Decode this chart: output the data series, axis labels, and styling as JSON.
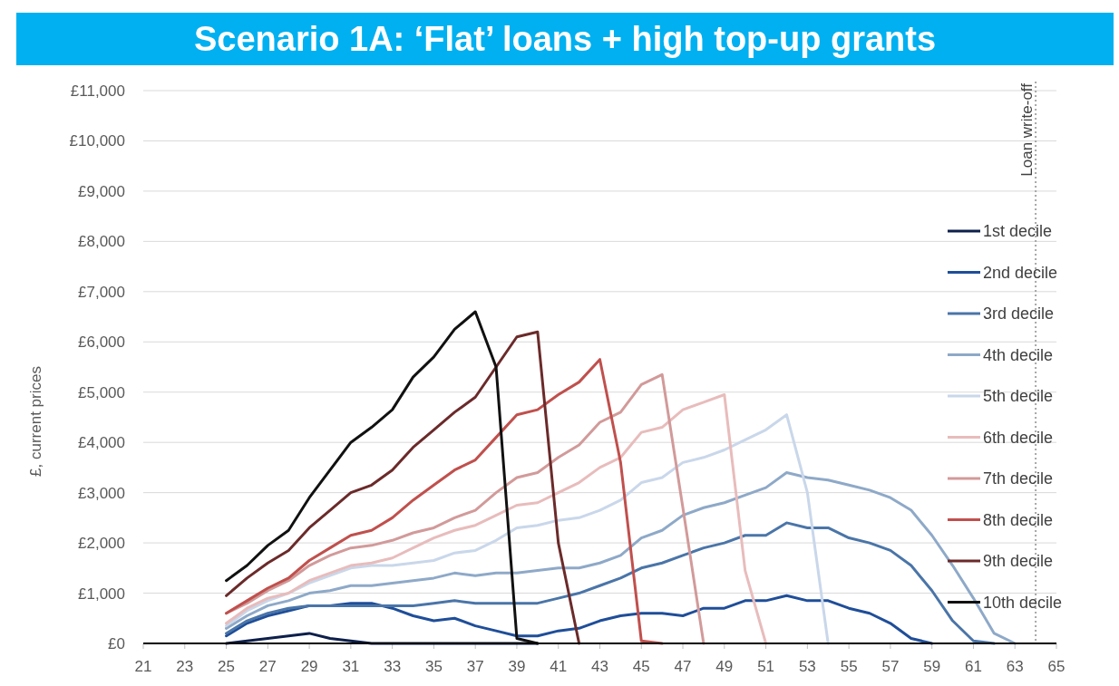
{
  "chart_data": {
    "type": "line",
    "title": "Scenario 1A: ‘Flat’ loans + high top-up grants",
    "ylabel": "£, current prices",
    "x": [
      25,
      26,
      27,
      28,
      29,
      30,
      31,
      32,
      33,
      34,
      35,
      36,
      37,
      38,
      39,
      40,
      41,
      42,
      43,
      44,
      45,
      46,
      47,
      48,
      49,
      50,
      51,
      52,
      53,
      54,
      55,
      56,
      57,
      58,
      59,
      60,
      61,
      62,
      63
    ],
    "xlim": [
      21,
      65
    ],
    "xticks": [
      21,
      23,
      25,
      27,
      29,
      31,
      33,
      35,
      37,
      39,
      41,
      43,
      45,
      47,
      49,
      51,
      53,
      55,
      57,
      59,
      61,
      63,
      65
    ],
    "ylim": [
      0,
      11000
    ],
    "yticks": [
      {
        "value": 0,
        "label": "£0"
      },
      {
        "value": 1000,
        "label": "£1,000"
      },
      {
        "value": 2000,
        "label": "£2,000"
      },
      {
        "value": 3000,
        "label": "£3,000"
      },
      {
        "value": 4000,
        "label": "£4,000"
      },
      {
        "value": 5000,
        "label": "£5,000"
      },
      {
        "value": 6000,
        "label": "£6,000"
      },
      {
        "value": 7000,
        "label": "£7,000"
      },
      {
        "value": 8000,
        "label": "£8,000"
      },
      {
        "value": 9000,
        "label": "£9,000"
      },
      {
        "value": 10000,
        "label": "£10,000"
      },
      {
        "value": 11000,
        "label": "£11,000"
      }
    ],
    "grid": "y",
    "legend": "right",
    "line_style": "solid",
    "ref_lines": [
      {
        "axis": "x",
        "value": 64,
        "label": "Loan write-off",
        "color": "#a6a6a6",
        "line_style": "dotted"
      }
    ],
    "series": [
      {
        "name": "1st decile",
        "color": "#0d1f4a",
        "values": [
          0,
          50,
          100,
          150,
          200,
          100,
          50,
          0,
          0,
          0,
          0,
          0,
          0,
          0,
          0,
          0,
          null,
          null,
          null,
          null,
          null,
          null,
          null,
          null,
          null,
          null,
          null,
          null,
          null,
          null,
          null,
          null,
          null,
          null,
          null,
          null,
          null,
          null,
          null
        ]
      },
      {
        "name": "2nd decile",
        "color": "#1f4e99",
        "values": [
          150,
          400,
          550,
          650,
          750,
          750,
          800,
          800,
          700,
          550,
          450,
          500,
          350,
          250,
          150,
          150,
          250,
          300,
          450,
          550,
          600,
          600,
          550,
          700,
          700,
          850,
          850,
          950,
          850,
          850,
          700,
          600,
          400,
          100,
          0,
          null,
          null,
          null,
          null
        ]
      },
      {
        "name": "3rd decile",
        "color": "#4a75a8",
        "values": [
          200,
          450,
          600,
          700,
          750,
          750,
          750,
          750,
          750,
          750,
          800,
          850,
          800,
          800,
          800,
          800,
          900,
          1000,
          1150,
          1300,
          1500,
          1600,
          1750,
          1900,
          2000,
          2150,
          2150,
          2400,
          2300,
          2300,
          2100,
          2000,
          1850,
          1550,
          1050,
          450,
          50,
          0,
          null
        ]
      },
      {
        "name": "4th decile",
        "color": "#8ea9c8",
        "values": [
          300,
          550,
          750,
          850,
          1000,
          1050,
          1150,
          1150,
          1200,
          1250,
          1300,
          1400,
          1350,
          1400,
          1400,
          1450,
          1500,
          1500,
          1600,
          1750,
          2100,
          2250,
          2550,
          2700,
          2800,
          2950,
          3100,
          3400,
          3300,
          3250,
          3150,
          3050,
          2900,
          2650,
          2150,
          1550,
          900,
          200,
          0
        ]
      },
      {
        "name": "5th decile",
        "color": "#c9d7ea",
        "values": [
          350,
          650,
          850,
          1000,
          1200,
          1350,
          1500,
          1550,
          1550,
          1600,
          1650,
          1800,
          1850,
          2050,
          2300,
          2350,
          2450,
          2500,
          2650,
          2850,
          3200,
          3300,
          3600,
          3700,
          3850,
          4050,
          4250,
          4550,
          3000,
          0,
          null,
          null,
          null,
          null,
          null,
          null,
          null,
          null,
          null
        ]
      },
      {
        "name": "6th decile",
        "color": "#e8bcbc",
        "values": [
          400,
          700,
          900,
          1000,
          1250,
          1400,
          1550,
          1600,
          1700,
          1900,
          2100,
          2250,
          2350,
          2550,
          2750,
          2800,
          3000,
          3200,
          3500,
          3700,
          4200,
          4300,
          4650,
          4800,
          4950,
          1450,
          0,
          null,
          null,
          null,
          null,
          null,
          null,
          null,
          null,
          null,
          null,
          null,
          null
        ]
      },
      {
        "name": "7th decile",
        "color": "#d29a9a",
        "values": [
          600,
          800,
          1050,
          1250,
          1550,
          1750,
          1900,
          1950,
          2050,
          2200,
          2300,
          2500,
          2650,
          3000,
          3300,
          3400,
          3700,
          3950,
          4400,
          4600,
          5150,
          5350,
          2700,
          0,
          null,
          null,
          null,
          null,
          null,
          null,
          null,
          null,
          null,
          null,
          null,
          null,
          null,
          null,
          null
        ]
      },
      {
        "name": "8th decile",
        "color": "#c0504d",
        "values": [
          600,
          850,
          1100,
          1300,
          1650,
          1900,
          2150,
          2250,
          2500,
          2850,
          3150,
          3450,
          3650,
          4100,
          4550,
          4650,
          4950,
          5200,
          5650,
          3600,
          50,
          0,
          null,
          null,
          null,
          null,
          null,
          null,
          null,
          null,
          null,
          null,
          null,
          null,
          null,
          null,
          null,
          null,
          null
        ]
      },
      {
        "name": "9th decile",
        "color": "#6b2a2a",
        "values": [
          950,
          1300,
          1600,
          1850,
          2300,
          2650,
          3000,
          3150,
          3450,
          3900,
          4250,
          4600,
          4900,
          5500,
          6100,
          6200,
          2000,
          0,
          null,
          null,
          null,
          null,
          null,
          null,
          null,
          null,
          null,
          null,
          null,
          null,
          null,
          null,
          null,
          null,
          null,
          null,
          null,
          null,
          null
        ]
      },
      {
        "name": "10th decile",
        "color": "#111111",
        "values": [
          1250,
          1550,
          1950,
          2250,
          2900,
          3450,
          4000,
          4300,
          4650,
          5300,
          5700,
          6250,
          6600,
          5500,
          100,
          0,
          null,
          null,
          null,
          null,
          null,
          null,
          null,
          null,
          null,
          null,
          null,
          null,
          null,
          null,
          null,
          null,
          null,
          null,
          null,
          null,
          null,
          null,
          null
        ]
      }
    ]
  }
}
